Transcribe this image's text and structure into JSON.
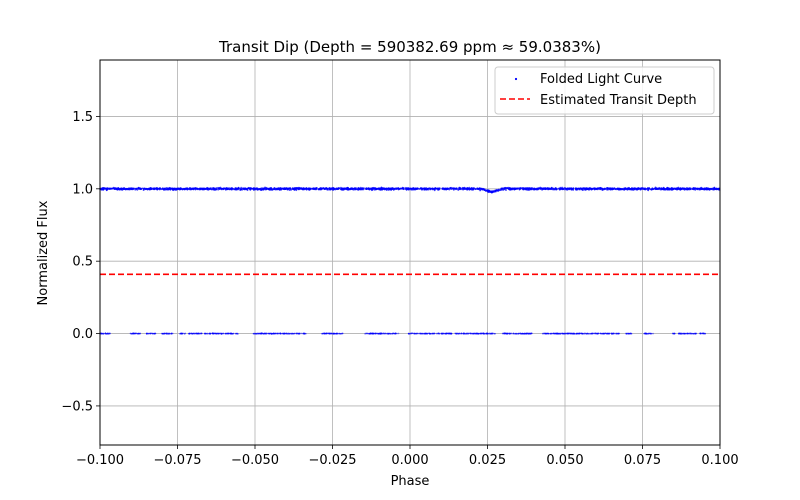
{
  "chart_data": {
    "type": "scatter",
    "title": "Transit Dip (Depth = 590382.69 ppm ≈ 59.0383%)",
    "xlabel": "Phase",
    "ylabel": "Normalized Flux",
    "xlim": [
      -0.1,
      0.1
    ],
    "ylim": [
      -0.77,
      1.89
    ],
    "xticks": [
      -0.1,
      -0.075,
      -0.05,
      -0.025,
      0.0,
      0.025,
      0.05,
      0.075,
      0.1
    ],
    "xtick_labels": [
      "−0.100",
      "−0.075",
      "−0.050",
      "−0.025",
      "0.000",
      "0.025",
      "0.050",
      "0.075",
      "0.100"
    ],
    "yticks": [
      -0.5,
      0.0,
      0.5,
      1.0,
      1.5
    ],
    "ytick_labels": [
      "−0.5",
      "0.0",
      "0.5",
      "1.0",
      "1.5"
    ],
    "grid": true,
    "legend_position": "top-right",
    "series": [
      {
        "name": "Folded Light Curve",
        "kind": "scatter",
        "color": "#0000ff",
        "baseline_flux": 1.0,
        "baseline_scatter": 0.006,
        "phase_range": [
          -0.1,
          0.1
        ],
        "dip": {
          "center_phase": 0.0265,
          "half_width_phase": 0.0035,
          "min_flux": 0.975
        },
        "low_cluster": {
          "flux": 0.0,
          "segments": [
            [
              -0.1,
              -0.0965
            ],
            [
              -0.0905,
              -0.087
            ],
            [
              -0.085,
              -0.082
            ],
            [
              -0.08,
              -0.0765
            ],
            [
              -0.0745,
              -0.0725
            ],
            [
              -0.0715,
              -0.0555
            ],
            [
              -0.0505,
              -0.0335
            ],
            [
              -0.0285,
              -0.0215
            ],
            [
              -0.0145,
              -0.0035
            ],
            [
              -0.0005,
              0.0135
            ],
            [
              0.0145,
              0.0275
            ],
            [
              0.0295,
              0.0395
            ],
            [
              0.0425,
              0.0675
            ],
            [
              0.0695,
              0.0715
            ],
            [
              0.0755,
              0.0785
            ],
            [
              0.0845,
              0.0855
            ],
            [
              0.0865,
              0.0925
            ],
            [
              0.0935,
              0.0955
            ]
          ]
        }
      },
      {
        "name": "Estimated Transit Depth",
        "kind": "hline",
        "color": "#ff0000",
        "linestyle": "dashed",
        "y": 0.409617
      }
    ]
  }
}
